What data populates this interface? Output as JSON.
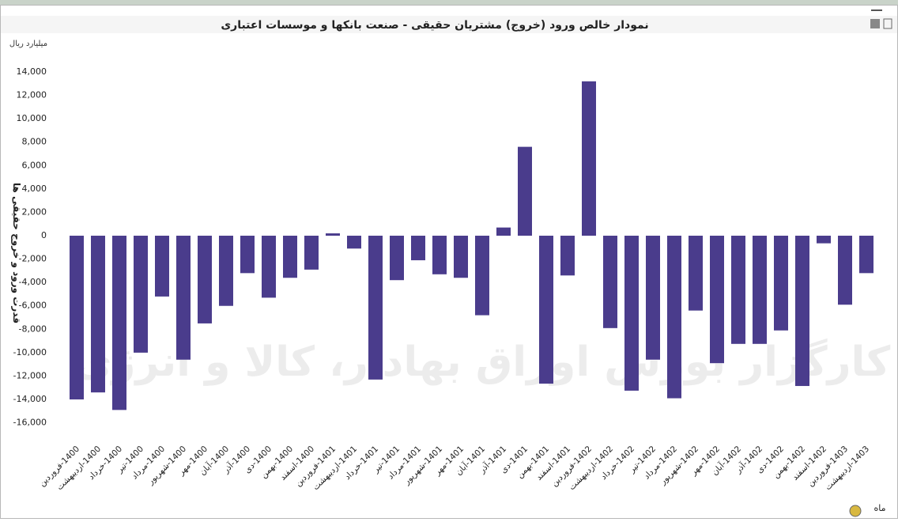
{
  "chart_data": {
    "type": "bar",
    "title": "نمودار خالص ورود (خروج) مشتریان حقیقی - صنعت بانکها و موسسات اعتباری",
    "unit": "میلیارد ریال",
    "y_label": "قدرت ورود و خروج حقیقی ها",
    "x_label": "ماه",
    "watermark": "کارگزار بورس اوراق بهادار، کالا و انرژی",
    "color": "#4a3c8c",
    "categories": [
      "1400-فروردین",
      "1400-اردیبهشت",
      "1400-خرداد",
      "1400-تیر",
      "1400-مرداد",
      "1400-شهریور",
      "1400-مهر",
      "1400-آبان",
      "1400-آذر",
      "1400-دی",
      "1400-بهمن",
      "1400-اسفند",
      "1401-فروردین",
      "1401-اردیبهشت",
      "1401-خرداد",
      "1401-تیر",
      "1401-مرداد",
      "1401-شهریور",
      "1401-مهر",
      "1401-آبان",
      "1401-آذر",
      "1401-دی",
      "1401-بهمن",
      "1401-اسفند",
      "1402-فروردین",
      "1402-اردیبهشت",
      "1402-خرداد",
      "1402-تیر",
      "1402-مرداد",
      "1402-شهریور",
      "1402-مهر",
      "1402-آبان",
      "1402-آذر",
      "1402-دی",
      "1402-بهمن",
      "1402-اسفند",
      "1403-فروردین",
      "1403-اردیبهشت"
    ],
    "values": [
      -14000,
      -13400,
      -14900,
      -10000,
      -5200,
      -10600,
      -7500,
      -6000,
      -3200,
      -5300,
      -3600,
      -2900,
      200,
      -1100,
      -12300,
      -3800,
      -2100,
      -3300,
      -3600,
      -6800,
      700,
      7600,
      -12650,
      -3400,
      13200,
      -7900,
      -13250,
      -10600,
      -13900,
      -6400,
      -10900,
      -9250,
      -9250,
      -8100,
      -12850,
      -650,
      -5900,
      -3200
    ],
    "ylim": [
      -17000,
      15000
    ],
    "yticks": [
      {
        "value": -16000,
        "label": "-16,000"
      },
      {
        "value": -14000,
        "label": "-14,000"
      },
      {
        "value": -12000,
        "label": "-12,000"
      },
      {
        "value": -10000,
        "label": "-10,000"
      },
      {
        "value": -8000,
        "label": "-8,000"
      },
      {
        "value": -6000,
        "label": "-6,000"
      },
      {
        "value": -4000,
        "label": "-4,000"
      },
      {
        "value": -2000,
        "label": "-2,000"
      },
      0,
      {
        "value": 2000,
        "label": "2,000"
      },
      {
        "value": 4000,
        "label": "4,000"
      },
      {
        "value": 6000,
        "label": "6,000"
      },
      {
        "value": 8000,
        "label": "8,000"
      },
      {
        "value": 10000,
        "label": "10,000"
      },
      {
        "value": 12000,
        "label": "12,000"
      },
      {
        "value": 14000,
        "label": "14,000"
      }
    ],
    "grid": false
  }
}
